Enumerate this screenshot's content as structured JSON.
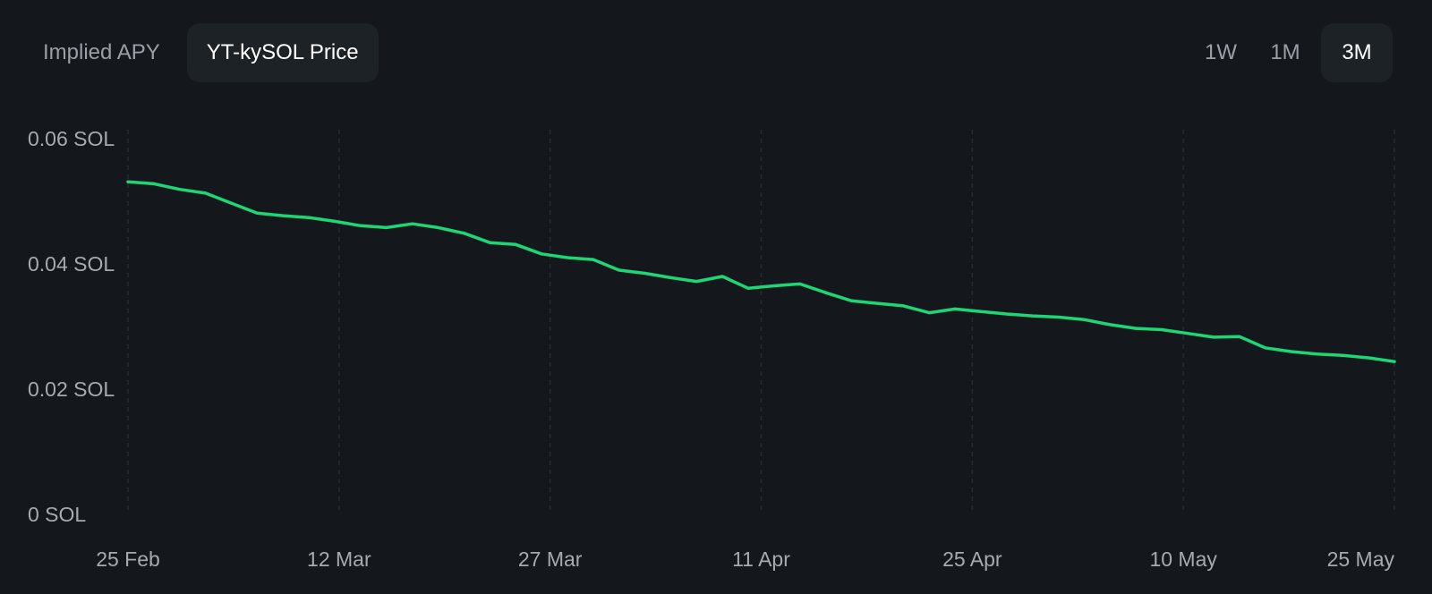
{
  "tabs": [
    {
      "label": "Implied APY",
      "active": false
    },
    {
      "label": "YT-kySOL Price",
      "active": true
    }
  ],
  "ranges": [
    {
      "label": "1W",
      "active": false
    },
    {
      "label": "1M",
      "active": false
    },
    {
      "label": "3M",
      "active": true
    }
  ],
  "chart_data": {
    "type": "line",
    "title": "",
    "xlabel": "",
    "ylabel": "",
    "ylim": [
      0,
      0.06
    ],
    "y_ticks": [
      {
        "value": 0.06,
        "label": "0.06 SOL"
      },
      {
        "value": 0.04,
        "label": "0.04 SOL"
      },
      {
        "value": 0.02,
        "label": "0.02 SOL"
      },
      {
        "value": 0,
        "label": "0 SOL"
      }
    ],
    "x_ticks": [
      "25 Feb",
      "12 Mar",
      "27 Mar",
      "11 Apr",
      "25 Apr",
      "10 May",
      "25 May"
    ],
    "grid": "vertical-dashed",
    "color": "#1ed673",
    "series": [
      {
        "values": [
          0.0531,
          0.0528,
          0.0519,
          0.0513,
          0.0497,
          0.0481,
          0.0477,
          0.0474,
          0.0468,
          0.0461,
          0.0458,
          0.0464,
          0.0458,
          0.0449,
          0.0434,
          0.0431,
          0.0416,
          0.041,
          0.0407,
          0.039,
          0.0385,
          0.0378,
          0.0372,
          0.038,
          0.0361,
          0.0365,
          0.0368,
          0.0354,
          0.0341,
          0.0337,
          0.0333,
          0.0322,
          0.0328,
          0.0324,
          0.032,
          0.0317,
          0.0315,
          0.0311,
          0.0303,
          0.0297,
          0.0295,
          0.0289,
          0.0283,
          0.0284,
          0.0266,
          0.026,
          0.0256,
          0.0254,
          0.025,
          0.0244
        ]
      }
    ]
  }
}
